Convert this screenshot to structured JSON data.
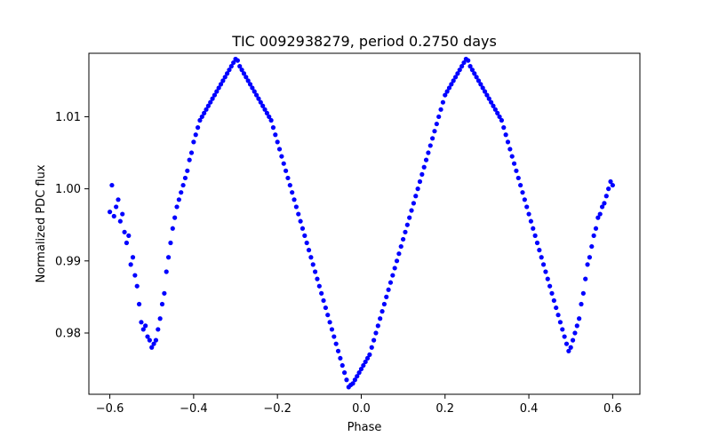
{
  "chart_data": {
    "type": "scatter",
    "title": "TIC 0092938279, period 0.2750 days",
    "xlabel": "Phase",
    "ylabel": "Normalized PDC flux",
    "xlim": [
      -0.65,
      0.665
    ],
    "ylim": [
      0.9715,
      1.0188
    ],
    "x_ticks": [
      -0.6,
      -0.4,
      -0.2,
      0.0,
      0.2,
      0.4,
      0.6
    ],
    "x_tick_labels": [
      "−0.6",
      "−0.4",
      "−0.2",
      "0.0",
      "0.2",
      "0.4",
      "0.6"
    ],
    "y_ticks": [
      0.98,
      0.99,
      1.0,
      1.01
    ],
    "y_tick_labels": [
      "0.98",
      "0.99",
      "1.00",
      "1.01"
    ],
    "grid": false,
    "marker_color": "#0000ff",
    "series": [
      {
        "name": "",
        "points": [
          [
            -0.6,
            0.9968
          ],
          [
            -0.595,
            1.0005
          ],
          [
            -0.59,
            0.9962
          ],
          [
            -0.585,
            0.9975
          ],
          [
            -0.58,
            0.9985
          ],
          [
            -0.575,
            0.9955
          ],
          [
            -0.57,
            0.9965
          ],
          [
            -0.565,
            0.994
          ],
          [
            -0.56,
            0.9925
          ],
          [
            -0.555,
            0.9935
          ],
          [
            -0.55,
            0.9895
          ],
          [
            -0.545,
            0.9905
          ],
          [
            -0.54,
            0.988
          ],
          [
            -0.535,
            0.9865
          ],
          [
            -0.53,
            0.984
          ],
          [
            -0.525,
            0.9815
          ],
          [
            -0.52,
            0.9805
          ],
          [
            -0.515,
            0.981
          ],
          [
            -0.51,
            0.9795
          ],
          [
            -0.505,
            0.979
          ],
          [
            -0.5,
            0.978
          ],
          [
            -0.495,
            0.9785
          ],
          [
            -0.49,
            0.979
          ],
          [
            -0.485,
            0.9805
          ],
          [
            -0.48,
            0.982
          ],
          [
            -0.475,
            0.984
          ],
          [
            -0.47,
            0.9855
          ],
          [
            -0.465,
            0.9885
          ],
          [
            -0.46,
            0.9905
          ],
          [
            -0.455,
            0.9925
          ],
          [
            -0.45,
            0.9945
          ],
          [
            -0.445,
            0.996
          ],
          [
            -0.44,
            0.9975
          ],
          [
            -0.435,
            0.9985
          ],
          [
            -0.43,
            0.9995
          ],
          [
            -0.425,
            1.0005
          ],
          [
            -0.42,
            1.0015
          ],
          [
            -0.415,
            1.0025
          ],
          [
            -0.41,
            1.004
          ],
          [
            -0.405,
            1.005
          ],
          [
            -0.4,
            1.0065
          ],
          [
            -0.395,
            1.0075
          ],
          [
            -0.39,
            1.0085
          ],
          [
            -0.385,
            1.0095
          ],
          [
            -0.38,
            1.01
          ],
          [
            -0.375,
            1.0105
          ],
          [
            -0.37,
            1.011
          ],
          [
            -0.365,
            1.0115
          ],
          [
            -0.36,
            1.012
          ],
          [
            -0.355,
            1.0125
          ],
          [
            -0.35,
            1.013
          ],
          [
            -0.345,
            1.0135
          ],
          [
            -0.34,
            1.014
          ],
          [
            -0.335,
            1.0145
          ],
          [
            -0.33,
            1.015
          ],
          [
            -0.325,
            1.0155
          ],
          [
            -0.32,
            1.016
          ],
          [
            -0.315,
            1.0165
          ],
          [
            -0.31,
            1.017
          ],
          [
            -0.305,
            1.0175
          ],
          [
            -0.3,
            1.018
          ],
          [
            -0.295,
            1.0178
          ],
          [
            -0.29,
            1.017
          ],
          [
            -0.285,
            1.0165
          ],
          [
            -0.28,
            1.016
          ],
          [
            -0.275,
            1.0155
          ],
          [
            -0.27,
            1.015
          ],
          [
            -0.265,
            1.0145
          ],
          [
            -0.26,
            1.014
          ],
          [
            -0.255,
            1.0135
          ],
          [
            -0.25,
            1.013
          ],
          [
            -0.245,
            1.0125
          ],
          [
            -0.24,
            1.012
          ],
          [
            -0.235,
            1.0115
          ],
          [
            -0.23,
            1.011
          ],
          [
            -0.225,
            1.0105
          ],
          [
            -0.22,
            1.01
          ],
          [
            -0.215,
            1.0095
          ],
          [
            -0.21,
            1.0085
          ],
          [
            -0.205,
            1.0075
          ],
          [
            -0.2,
            1.0065
          ],
          [
            -0.195,
            1.0055
          ],
          [
            -0.19,
            1.0045
          ],
          [
            -0.185,
            1.0035
          ],
          [
            -0.18,
            1.0025
          ],
          [
            -0.175,
            1.0015
          ],
          [
            -0.17,
            1.0005
          ],
          [
            -0.165,
            0.9995
          ],
          [
            -0.16,
            0.9985
          ],
          [
            -0.155,
            0.9975
          ],
          [
            -0.15,
            0.9965
          ],
          [
            -0.145,
            0.9955
          ],
          [
            -0.14,
            0.9945
          ],
          [
            -0.135,
            0.9935
          ],
          [
            -0.13,
            0.9925
          ],
          [
            -0.125,
            0.9915
          ],
          [
            -0.12,
            0.9905
          ],
          [
            -0.115,
            0.9895
          ],
          [
            -0.11,
            0.9885
          ],
          [
            -0.105,
            0.9875
          ],
          [
            -0.1,
            0.9865
          ],
          [
            -0.095,
            0.9855
          ],
          [
            -0.09,
            0.9845
          ],
          [
            -0.085,
            0.9835
          ],
          [
            -0.08,
            0.9825
          ],
          [
            -0.075,
            0.9815
          ],
          [
            -0.07,
            0.9805
          ],
          [
            -0.065,
            0.9795
          ],
          [
            -0.06,
            0.9785
          ],
          [
            -0.055,
            0.9775
          ],
          [
            -0.05,
            0.9765
          ],
          [
            -0.045,
            0.9755
          ],
          [
            -0.04,
            0.9745
          ],
          [
            -0.035,
            0.9735
          ],
          [
            -0.03,
            0.9725
          ],
          [
            -0.025,
            0.9728
          ],
          [
            -0.02,
            0.973
          ],
          [
            -0.015,
            0.9735
          ],
          [
            -0.01,
            0.974
          ],
          [
            -0.005,
            0.9745
          ],
          [
            0.0,
            0.975
          ],
          [
            0.005,
            0.9755
          ],
          [
            0.01,
            0.976
          ],
          [
            0.015,
            0.9765
          ],
          [
            0.02,
            0.977
          ],
          [
            0.025,
            0.978
          ],
          [
            0.03,
            0.979
          ],
          [
            0.035,
            0.98
          ],
          [
            0.04,
            0.981
          ],
          [
            0.045,
            0.982
          ],
          [
            0.05,
            0.983
          ],
          [
            0.055,
            0.984
          ],
          [
            0.06,
            0.985
          ],
          [
            0.065,
            0.986
          ],
          [
            0.07,
            0.987
          ],
          [
            0.075,
            0.988
          ],
          [
            0.08,
            0.989
          ],
          [
            0.085,
            0.99
          ],
          [
            0.09,
            0.991
          ],
          [
            0.095,
            0.992
          ],
          [
            0.1,
            0.993
          ],
          [
            0.105,
            0.994
          ],
          [
            0.11,
            0.995
          ],
          [
            0.115,
            0.996
          ],
          [
            0.12,
            0.997
          ],
          [
            0.125,
            0.998
          ],
          [
            0.13,
            0.999
          ],
          [
            0.135,
            1.0
          ],
          [
            0.14,
            1.001
          ],
          [
            0.145,
            1.002
          ],
          [
            0.15,
            1.003
          ],
          [
            0.155,
            1.004
          ],
          [
            0.16,
            1.005
          ],
          [
            0.165,
            1.006
          ],
          [
            0.17,
            1.007
          ],
          [
            0.175,
            1.008
          ],
          [
            0.18,
            1.009
          ],
          [
            0.185,
            1.01
          ],
          [
            0.19,
            1.011
          ],
          [
            0.195,
            1.012
          ],
          [
            0.2,
            1.013
          ],
          [
            0.205,
            1.0135
          ],
          [
            0.21,
            1.014
          ],
          [
            0.215,
            1.0145
          ],
          [
            0.22,
            1.015
          ],
          [
            0.225,
            1.0155
          ],
          [
            0.23,
            1.016
          ],
          [
            0.235,
            1.0165
          ],
          [
            0.24,
            1.017
          ],
          [
            0.245,
            1.0175
          ],
          [
            0.25,
            1.018
          ],
          [
            0.255,
            1.0178
          ],
          [
            0.26,
            1.017
          ],
          [
            0.265,
            1.0165
          ],
          [
            0.27,
            1.016
          ],
          [
            0.275,
            1.0155
          ],
          [
            0.28,
            1.015
          ],
          [
            0.285,
            1.0145
          ],
          [
            0.29,
            1.014
          ],
          [
            0.295,
            1.0135
          ],
          [
            0.3,
            1.013
          ],
          [
            0.305,
            1.0125
          ],
          [
            0.31,
            1.012
          ],
          [
            0.315,
            1.0115
          ],
          [
            0.32,
            1.011
          ],
          [
            0.325,
            1.0105
          ],
          [
            0.33,
            1.01
          ],
          [
            0.335,
            1.0095
          ],
          [
            0.34,
            1.0085
          ],
          [
            0.345,
            1.0075
          ],
          [
            0.35,
            1.0065
          ],
          [
            0.355,
            1.0055
          ],
          [
            0.36,
            1.0045
          ],
          [
            0.365,
            1.0035
          ],
          [
            0.37,
            1.0025
          ],
          [
            0.375,
            1.0015
          ],
          [
            0.38,
            1.0005
          ],
          [
            0.385,
            0.9995
          ],
          [
            0.39,
            0.9985
          ],
          [
            0.395,
            0.9975
          ],
          [
            0.4,
            0.9965
          ],
          [
            0.405,
            0.9955
          ],
          [
            0.41,
            0.9945
          ],
          [
            0.415,
            0.9935
          ],
          [
            0.42,
            0.9925
          ],
          [
            0.425,
            0.9915
          ],
          [
            0.43,
            0.9905
          ],
          [
            0.435,
            0.9895
          ],
          [
            0.44,
            0.9885
          ],
          [
            0.445,
            0.9875
          ],
          [
            0.45,
            0.9865
          ],
          [
            0.455,
            0.9855
          ],
          [
            0.46,
            0.9845
          ],
          [
            0.465,
            0.9835
          ],
          [
            0.47,
            0.9825
          ],
          [
            0.475,
            0.9815
          ],
          [
            0.48,
            0.9805
          ],
          [
            0.485,
            0.9795
          ],
          [
            0.49,
            0.9785
          ],
          [
            0.495,
            0.9775
          ],
          [
            0.5,
            0.978
          ],
          [
            0.505,
            0.979
          ],
          [
            0.51,
            0.98
          ],
          [
            0.515,
            0.981
          ],
          [
            0.52,
            0.982
          ],
          [
            0.525,
            0.984
          ],
          [
            0.53,
            0.9855
          ],
          [
            0.535,
            0.9875
          ],
          [
            0.54,
            0.9895
          ],
          [
            0.545,
            0.9905
          ],
          [
            0.55,
            0.992
          ],
          [
            0.555,
            0.9935
          ],
          [
            0.56,
            0.9945
          ],
          [
            0.565,
            0.996
          ],
          [
            0.57,
            0.9965
          ],
          [
            0.575,
            0.9975
          ],
          [
            0.58,
            0.998
          ],
          [
            0.585,
            0.999
          ],
          [
            0.59,
            1.0
          ],
          [
            0.595,
            1.001
          ],
          [
            0.6,
            1.0005
          ]
        ]
      }
    ]
  }
}
